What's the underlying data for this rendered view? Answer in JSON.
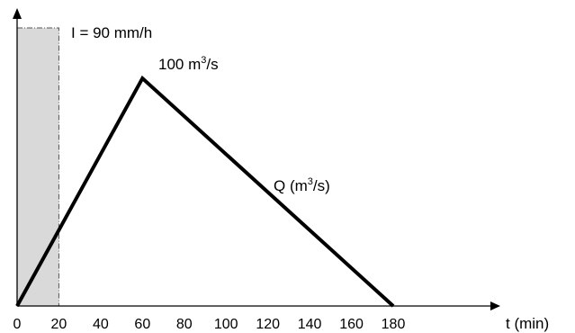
{
  "chart_data": {
    "type": "line",
    "xlabel": "t  (min)",
    "x_ticks": [
      0,
      20,
      40,
      60,
      80,
      100,
      120,
      140,
      160,
      180
    ],
    "xlim": [
      0,
      180
    ],
    "grid": false,
    "rainfall": {
      "label": "I = 90 mm/h",
      "start": 0,
      "end": 20,
      "intensity": 90,
      "fill_color": "#d9d9d9"
    },
    "hydrograph": {
      "label_main": "Q  (m",
      "label_sup": "3",
      "label_end": "/s)",
      "points": [
        {
          "t": 0,
          "q": 0
        },
        {
          "t": 60,
          "q": 100
        },
        {
          "t": 180,
          "q": 0
        }
      ],
      "peak_label_main": "100 m",
      "peak_label_sup": "3",
      "peak_label_end": "/s",
      "line_color": "#000000"
    }
  }
}
